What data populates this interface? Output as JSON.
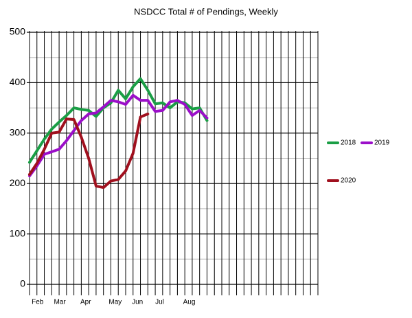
{
  "chart_data": {
    "type": "line",
    "title": "NSDCC Total # of Pendings, Weekly",
    "xlim": [
      0,
      39
    ],
    "ylim": [
      0,
      500
    ],
    "yticks": [
      0,
      100,
      200,
      300,
      400,
      500
    ],
    "xticks": [
      {
        "value": 1,
        "label": "Feb"
      },
      {
        "value": 4,
        "label": "Mar"
      },
      {
        "value": 7.5,
        "label": "Apr"
      },
      {
        "value": 11.5,
        "label": "May"
      },
      {
        "value": 14.5,
        "label": "Jun"
      },
      {
        "value": 17.5,
        "label": "Jul"
      },
      {
        "value": 21.5,
        "label": "Aug"
      }
    ],
    "x": [
      0,
      1,
      2,
      3,
      4,
      5,
      6,
      7,
      8,
      9,
      10,
      11,
      12,
      13,
      14,
      15,
      16,
      17,
      18,
      19,
      20,
      21,
      22,
      23,
      24
    ],
    "xgrid_step": 1,
    "ygrid_minor_step": 50,
    "grid": true,
    "legend": "right",
    "series": [
      {
        "name": "2018",
        "color": "#1a9e45",
        "values": [
          242,
          265,
          288,
          308,
          322,
          335,
          350,
          347,
          345,
          333,
          350,
          360,
          385,
          368,
          392,
          408,
          385,
          358,
          360,
          350,
          362,
          360,
          348,
          350,
          325
        ]
      },
      {
        "name": "2019",
        "color": "#9b0fc9",
        "values": [
          215,
          235,
          258,
          263,
          268,
          285,
          305,
          325,
          338,
          340,
          352,
          365,
          362,
          357,
          375,
          365,
          365,
          343,
          345,
          362,
          365,
          357,
          335,
          345,
          330
        ]
      },
      {
        "name": "2020",
        "color": "#a0101e",
        "values": [
          218,
          240,
          268,
          300,
          302,
          328,
          327,
          292,
          250,
          195,
          192,
          205,
          208,
          225,
          260,
          332,
          338,
          null,
          null,
          null,
          null,
          null,
          null,
          null,
          null
        ]
      }
    ]
  }
}
